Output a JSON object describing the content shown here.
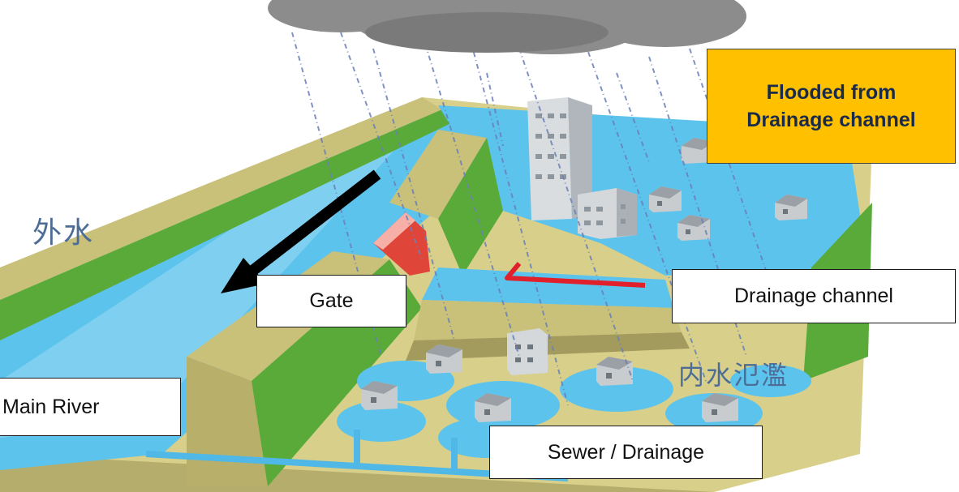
{
  "labels": {
    "flooded_line1": "Flooded from",
    "flooded_line2": "Drainage channel",
    "gate": "Gate",
    "drainage_channel": "Drainage channel",
    "main_river": "Main River",
    "sewer_drainage": "Sewer / Drainage",
    "outer_water_jp": "外水",
    "inner_flood_jp": "内水氾濫"
  },
  "colors": {
    "water": "#5cc3ec",
    "embankment_green": "#5aaa3a",
    "embankment_khaki": "#c9c07a",
    "ground": "#d8cf8a",
    "cloud": "#8c8c8c",
    "flood_badge": "#ffc000",
    "flow_arrow": "#000000",
    "backflow_arrow": "#e0202a"
  }
}
